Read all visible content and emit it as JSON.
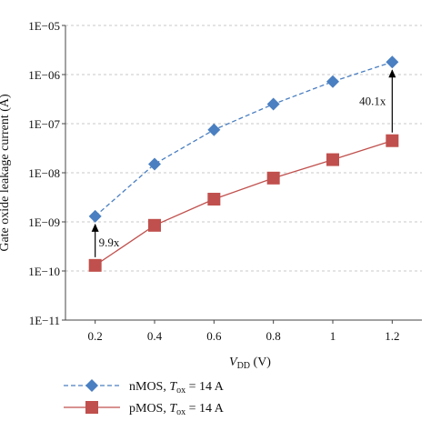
{
  "chart_data": {
    "type": "line",
    "ylabel": "Gate oxide leakage current (A)",
    "xlabel_main": "V",
    "xlabel_sub": "DD",
    "xlabel_unit": " (V)",
    "x_ticks": [
      "0.2",
      "0.4",
      "0.6",
      "0.8",
      "1",
      "1.2"
    ],
    "y_ticks": [
      "1E−11",
      "1E−10",
      "1E−09",
      "1E−08",
      "1E−07",
      "1E−06",
      "1E−05"
    ],
    "y_scale": "log",
    "ylim": [
      1e-11,
      1e-05
    ],
    "xlim": [
      0.1,
      1.3
    ],
    "grid": "horizontal dashed",
    "legend_position": "bottom",
    "x": [
      0.2,
      0.4,
      0.6,
      0.8,
      1.0,
      1.2
    ],
    "series": [
      {
        "name_main": "nMOS, ",
        "name_t": "T",
        "name_sub": "ox",
        "name_rest": " = 14 A",
        "color": "#4a7fc1",
        "marker": "diamond",
        "line": "dashed",
        "values": [
          1.3e-09,
          1.5e-08,
          7.5e-08,
          2.5e-07,
          7.2e-07,
          1.8e-06
        ]
      },
      {
        "name_main": "pMOS, ",
        "name_t": "T",
        "name_sub": "ox",
        "name_rest": " = 14 A",
        "color": "#c0504d",
        "marker": "square",
        "line": "solid",
        "values": [
          1.3e-10,
          8.5e-10,
          2.9e-09,
          7.8e-09,
          1.85e-08,
          4.5e-08
        ]
      }
    ],
    "annotations": [
      {
        "text": "9.9x",
        "x": 0.2,
        "from": 1.3e-10,
        "to": 1.3e-09
      },
      {
        "text": "40.1x",
        "x": 1.2,
        "from": 4.5e-08,
        "to": 1.8e-06
      }
    ]
  }
}
